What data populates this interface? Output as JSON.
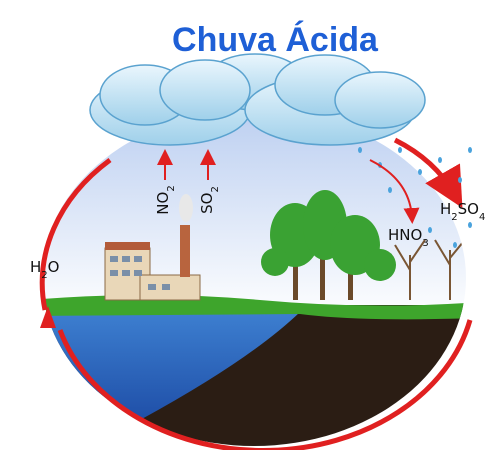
{
  "title": "Chuva Ácida",
  "labels": [
    {
      "segments": [
        {
          "text": "NO",
          "sub": false
        },
        {
          "text": "2",
          "sub": true
        }
      ]
    },
    {
      "segments": [
        {
          "text": "SO",
          "sub": false
        },
        {
          "text": "2",
          "sub": true
        }
      ]
    },
    {
      "segments": [
        {
          "text": "H",
          "sub": false
        },
        {
          "text": "2",
          "sub": true
        },
        {
          "text": "O",
          "sub": false
        }
      ]
    },
    {
      "segments": [
        {
          "text": "HNO",
          "sub": false
        },
        {
          "text": "3",
          "sub": true
        }
      ]
    },
    {
      "segments": [
        {
          "text": "H",
          "sub": false
        },
        {
          "text": "2",
          "sub": true
        },
        {
          "text": "SO",
          "sub": false
        },
        {
          "text": "4",
          "sub": true
        }
      ]
    }
  ]
}
